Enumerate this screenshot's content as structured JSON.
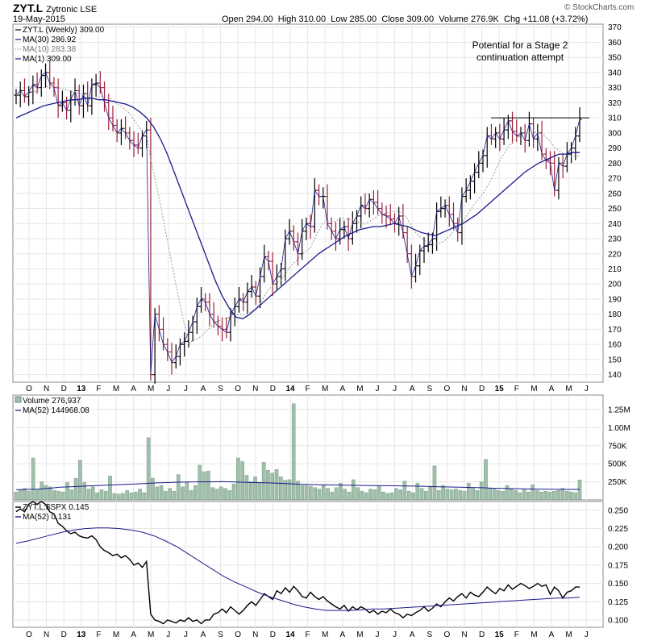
{
  "header": {
    "symbol": "ZYT.L",
    "name": "Zytronic LSE",
    "date": "19-May-2015",
    "brand": "© StockCharts.com",
    "ohlc": [
      {
        "label": "Open",
        "value": "294.00"
      },
      {
        "label": "High",
        "value": "310.00"
      },
      {
        "label": "Low",
        "value": "285.00"
      },
      {
        "label": "Close",
        "value": "309.00"
      },
      {
        "label": "Volume",
        "value": "276.9K"
      },
      {
        "label": "Chg",
        "value": "+11.08 (+3.72%)"
      }
    ]
  },
  "colors": {
    "up": "#000000",
    "down": "#a0203a",
    "ma_long": "#1a1a8c",
    "ma_short": "#999999",
    "volume": "#9fbfaa",
    "panel_bg": "#ffffff",
    "grid": "#e6e6e6"
  },
  "chart_data": [
    {
      "type": "line",
      "panel": "price",
      "legend": [
        {
          "text": "ZYT.L (Weekly) 309.00",
          "icon": "ohlc-bar-icon"
        },
        {
          "text": "MA(30) 286.92",
          "icon": "solid-line-icon"
        },
        {
          "text": "MA(10) 283.38",
          "icon": "dotted-line-icon"
        },
        {
          "text": "MA(1) 309.00",
          "icon": "solid-line-icon"
        }
      ],
      "annotation": [
        "Potential for a Stage 2",
        "continuation attempt"
      ],
      "resistance_level": 310,
      "ylim": [
        135,
        372
      ],
      "y_ticks": [
        140,
        150,
        160,
        170,
        180,
        190,
        200,
        210,
        220,
        230,
        240,
        250,
        260,
        270,
        280,
        290,
        300,
        310,
        320,
        330,
        340,
        350,
        360,
        370
      ],
      "series": [
        {
          "name": "ZYT.L (Weekly)",
          "values": [
            325,
            328,
            324,
            327,
            332,
            330,
            338,
            340,
            333,
            330,
            318,
            320,
            315,
            322,
            328,
            318,
            326,
            318,
            332,
            333,
            330,
            320,
            310,
            305,
            300,
            303,
            300,
            295,
            292,
            290,
            298,
            302,
            140,
            180,
            170,
            160,
            155,
            148,
            152,
            160,
            162,
            168,
            175,
            185,
            190,
            188,
            180,
            175,
            172,
            170,
            168,
            180,
            185,
            190,
            188,
            195,
            198,
            192,
            205,
            218,
            215,
            200,
            205,
            210,
            230,
            235,
            228,
            220,
            235,
            240,
            238,
            262,
            258,
            258,
            240,
            235,
            230,
            236,
            238,
            230,
            240,
            245,
            252,
            250,
            256,
            254,
            250,
            246,
            245,
            243,
            240,
            245,
            234,
            220,
            205,
            212,
            222,
            225,
            226,
            230,
            248,
            250,
            252,
            246,
            240,
            234,
            258,
            262,
            268,
            274,
            280,
            285,
            298,
            296,
            300,
            296,
            302,
            308,
            301,
            298,
            300,
            295,
            306,
            296,
            300,
            286,
            282,
            280,
            262,
            280,
            278,
            286,
            290,
            298,
            309
          ]
        },
        {
          "name": "MA(30)",
          "values": [
            310,
            312,
            314,
            316,
            318,
            319,
            320,
            321,
            322,
            322,
            323,
            323,
            322,
            322,
            321,
            320,
            319,
            317,
            314,
            310,
            304,
            296,
            286,
            274,
            262,
            250,
            238,
            226,
            214,
            202,
            192,
            184,
            178,
            177,
            180,
            184,
            188,
            192,
            196,
            200,
            204,
            208,
            212,
            216,
            220,
            223,
            226,
            229,
            232,
            234,
            236,
            237,
            238,
            238,
            239,
            240,
            239,
            238,
            236,
            234,
            233,
            232,
            234,
            236,
            238,
            240,
            243,
            246,
            250,
            254,
            258,
            262,
            266,
            270,
            274,
            277,
            280,
            282,
            284,
            286,
            286,
            287,
            287
          ]
        }
      ]
    },
    {
      "type": "bar",
      "panel": "volume",
      "legend": [
        {
          "text": "Volume 276,937",
          "icon": "volume-bar-icon"
        },
        {
          "text": "MA(52) 144968.08",
          "icon": "solid-line-icon"
        }
      ],
      "ylim": [
        0,
        1450000
      ],
      "y_ticks": [
        {
          "value": 250000,
          "label": "250K"
        },
        {
          "value": 500000,
          "label": "500K"
        },
        {
          "value": 750000,
          "label": "750K"
        },
        {
          "value": 1000000,
          "label": "1.00M"
        },
        {
          "value": 1250000,
          "label": "1.25M"
        }
      ],
      "values": [
        110000,
        130000,
        160000,
        120000,
        580000,
        140000,
        250000,
        200000,
        180000,
        130000,
        120000,
        110000,
        240000,
        140000,
        300000,
        550000,
        240000,
        150000,
        180000,
        100000,
        140000,
        120000,
        330000,
        90000,
        80000,
        90000,
        130000,
        100000,
        110000,
        150000,
        100000,
        860000,
        300000,
        180000,
        200000,
        120000,
        160000,
        120000,
        350000,
        180000,
        240000,
        130000,
        200000,
        480000,
        390000,
        400000,
        170000,
        150000,
        180000,
        160000,
        130000,
        220000,
        580000,
        530000,
        340000,
        250000,
        320000,
        240000,
        520000,
        410000,
        370000,
        420000,
        320000,
        270000,
        280000,
        1330000,
        260000,
        200000,
        200000,
        190000,
        170000,
        150000,
        200000,
        160000,
        110000,
        170000,
        230000,
        150000,
        110000,
        280000,
        170000,
        120000,
        100000,
        150000,
        140000,
        190000,
        110000,
        90000,
        100000,
        160000,
        140000,
        260000,
        120000,
        100000,
        230000,
        160000,
        120000,
        180000,
        470000,
        130000,
        200000,
        150000,
        140000,
        150000,
        130000,
        120000,
        230000,
        160000,
        130000,
        250000,
        560000,
        160000,
        150000,
        130000,
        120000,
        200000,
        150000,
        130000,
        100000,
        140000,
        110000,
        210000,
        130000,
        110000,
        120000,
        110000,
        120000,
        130000,
        160000,
        120000,
        110000,
        100000,
        276937
      ],
      "ma": [
        140000,
        145000,
        150000,
        160000,
        175000,
        182000,
        188000,
        195000,
        202000,
        208000,
        214000,
        220000,
        228000,
        235000,
        240000,
        245000,
        248000,
        250000,
        250000,
        252000,
        248000,
        244000,
        240000,
        236000,
        232000,
        226000,
        218000,
        214000,
        210000,
        208000,
        205000,
        202000,
        200000,
        198000,
        196000,
        195000,
        193000,
        190000,
        186000,
        182000,
        178000,
        175000,
        172000,
        168000,
        162000,
        158000,
        156000,
        152000,
        150000,
        148000,
        146000,
        145000,
        144968
      ]
    },
    {
      "type": "line",
      "panel": "ratio",
      "legend": [
        {
          "text": "ZYT.L:$SPX 0.145",
          "icon": "solid-line-icon"
        },
        {
          "text": "MA(52) 0.131",
          "icon": "solid-line-icon"
        }
      ],
      "ylim": [
        0.09,
        0.262
      ],
      "y_ticks": [
        {
          "value": 0.1,
          "label": "0.100"
        },
        {
          "value": 0.125,
          "label": "0.125"
        },
        {
          "value": 0.15,
          "label": "0.150"
        },
        {
          "value": 0.175,
          "label": "0.175"
        },
        {
          "value": 0.2,
          "label": "0.200"
        },
        {
          "value": 0.225,
          "label": "0.225"
        },
        {
          "value": 0.25,
          "label": "0.250"
        }
      ],
      "series": [
        {
          "name": "ZYT.L:$SPX",
          "values": [
            0.248,
            0.252,
            0.248,
            0.258,
            0.262,
            0.258,
            0.262,
            0.258,
            0.248,
            0.245,
            0.232,
            0.228,
            0.222,
            0.218,
            0.22,
            0.215,
            0.213,
            0.212,
            0.215,
            0.21,
            0.2,
            0.195,
            0.192,
            0.188,
            0.19,
            0.185,
            0.188,
            0.183,
            0.175,
            0.178,
            0.172,
            0.18,
            0.108,
            0.1,
            0.098,
            0.095,
            0.1,
            0.098,
            0.096,
            0.1,
            0.098,
            0.103,
            0.098,
            0.1,
            0.095,
            0.1,
            0.1,
            0.108,
            0.11,
            0.115,
            0.11,
            0.118,
            0.113,
            0.108,
            0.113,
            0.12,
            0.125,
            0.12,
            0.128,
            0.136,
            0.132,
            0.128,
            0.14,
            0.136,
            0.144,
            0.138,
            0.146,
            0.14,
            0.132,
            0.13,
            0.138,
            0.132,
            0.128,
            0.132,
            0.126,
            0.122,
            0.118,
            0.115,
            0.12,
            0.112,
            0.118,
            0.114,
            0.118,
            0.115,
            0.11,
            0.113,
            0.108,
            0.112,
            0.11,
            0.115,
            0.11,
            0.108,
            0.103,
            0.108,
            0.106,
            0.11,
            0.113,
            0.118,
            0.112,
            0.116,
            0.122,
            0.118,
            0.125,
            0.13,
            0.126,
            0.132,
            0.136,
            0.13,
            0.138,
            0.134,
            0.132,
            0.138,
            0.145,
            0.14,
            0.136,
            0.143,
            0.14,
            0.148,
            0.142,
            0.146,
            0.15,
            0.147,
            0.143,
            0.146,
            0.15,
            0.146,
            0.148,
            0.135,
            0.145,
            0.14,
            0.13,
            0.138,
            0.14,
            0.145,
            0.145
          ]
        },
        {
          "name": "MA(52)",
          "values": [
            0.205,
            0.208,
            0.212,
            0.216,
            0.22,
            0.223,
            0.225,
            0.226,
            0.226,
            0.225,
            0.223,
            0.22,
            0.215,
            0.208,
            0.2,
            0.19,
            0.18,
            0.17,
            0.16,
            0.152,
            0.145,
            0.138,
            0.132,
            0.127,
            0.122,
            0.118,
            0.115,
            0.113,
            0.113,
            0.113,
            0.114,
            0.115,
            0.115,
            0.116,
            0.117,
            0.118,
            0.119,
            0.12,
            0.121,
            0.122,
            0.123,
            0.124,
            0.125,
            0.126,
            0.127,
            0.128,
            0.129,
            0.13,
            0.13,
            0.131
          ]
        }
      ]
    }
  ],
  "x_axis": {
    "labels": [
      "O",
      "N",
      "D",
      "13",
      "F",
      "M",
      "A",
      "M",
      "J",
      "J",
      "A",
      "S",
      "O",
      "N",
      "D",
      "14",
      "F",
      "M",
      "A",
      "M",
      "J",
      "J",
      "A",
      "S",
      "O",
      "N",
      "D",
      "15",
      "F",
      "M",
      "A",
      "M",
      "J"
    ],
    "bold": [
      "13",
      "14",
      "15"
    ]
  }
}
